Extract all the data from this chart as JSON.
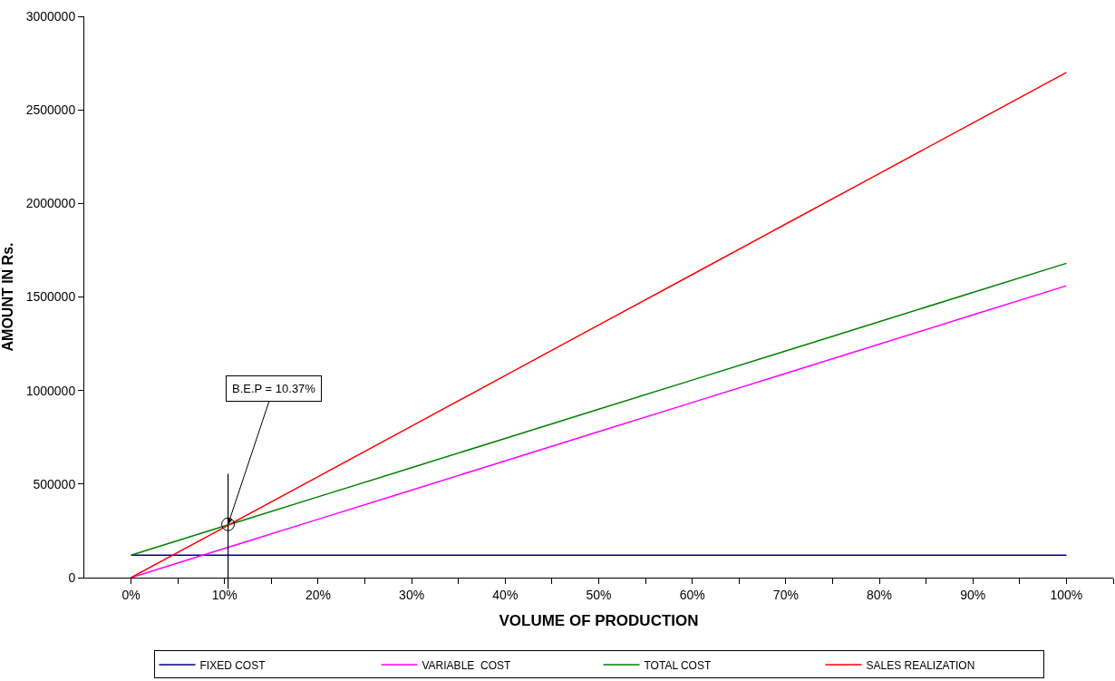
{
  "chart_data": {
    "type": "line",
    "xlabel": "VOLUME OF PRODUCTION",
    "ylabel": "AMOUNT IN Rs.",
    "x": [
      0,
      10,
      20,
      30,
      40,
      50,
      60,
      70,
      80,
      90,
      100
    ],
    "series": [
      {
        "name": "FIXED COST",
        "color": "#000080",
        "values": [
          120000,
          120000,
          120000,
          120000,
          120000,
          120000,
          120000,
          120000,
          120000,
          120000,
          120000
        ]
      },
      {
        "name": "VARIABLE  COST",
        "color": "#ff00ff",
        "values": [
          0,
          156000,
          312000,
          468000,
          624000,
          780000,
          936000,
          1092000,
          1248000,
          1404000,
          1560000
        ]
      },
      {
        "name": "TOTAL COST",
        "color": "#008000",
        "values": [
          120000,
          276000,
          432000,
          588000,
          744000,
          900000,
          1056000,
          1212000,
          1368000,
          1524000,
          1680000
        ]
      },
      {
        "name": "SALES REALIZATION",
        "color": "#ff0000",
        "values": [
          0,
          270000,
          540000,
          810000,
          1080000,
          1350000,
          1620000,
          1890000,
          2160000,
          2430000,
          2700000
        ]
      }
    ],
    "xlim": [
      -5,
      105
    ],
    "xticks": [
      {
        "value": 0,
        "label": "0%"
      },
      {
        "value": 5,
        "label": null
      },
      {
        "value": 10,
        "label": "10%"
      },
      {
        "value": 15,
        "label": null
      },
      {
        "value": 20,
        "label": "20%"
      },
      {
        "value": 25,
        "label": null
      },
      {
        "value": 30,
        "label": "30%"
      },
      {
        "value": 35,
        "label": null
      },
      {
        "value": 40,
        "label": "40%"
      },
      {
        "value": 45,
        "label": null
      },
      {
        "value": 50,
        "label": "50%"
      },
      {
        "value": 55,
        "label": null
      },
      {
        "value": 60,
        "label": "60%"
      },
      {
        "value": 65,
        "label": null
      },
      {
        "value": 70,
        "label": "70%"
      },
      {
        "value": 75,
        "label": null
      },
      {
        "value": 80,
        "label": "80%"
      },
      {
        "value": 85,
        "label": null
      },
      {
        "value": 90,
        "label": "90%"
      },
      {
        "value": 95,
        "label": null
      },
      {
        "value": 100,
        "label": "100%"
      },
      {
        "value": 105,
        "label": null
      }
    ],
    "ylim": [
      0,
      3000000
    ],
    "yticks": [
      0,
      500000,
      1000000,
      1500000,
      2000000,
      2500000,
      3000000
    ],
    "ref_lines": [
      {
        "axis": "x",
        "value": 10.37,
        "color": "#000000"
      }
    ],
    "annotations": [
      {
        "text": "B.E.P = 10.37%",
        "x": 10.37,
        "y": 285000
      }
    ],
    "grid": false,
    "legend": "bottom",
    "marker": "none",
    "line_style": "solid"
  }
}
